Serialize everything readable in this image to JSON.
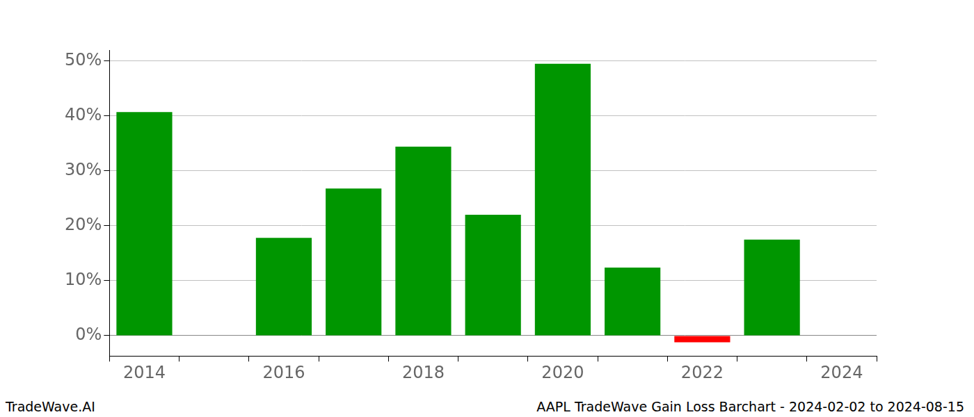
{
  "chart_data": {
    "type": "bar",
    "title": "AAPL TradeWave Gain Loss Barchart - 2024-02-02 to 2024-08-15",
    "annotations": [
      "TradeWave.AI"
    ],
    "categories": [
      "2014",
      null,
      "2016",
      null,
      "2018",
      null,
      "2020",
      null,
      "2022",
      null,
      "2024"
    ],
    "values": [
      40.7,
      null,
      17.8,
      26.8,
      34.4,
      22.0,
      49.5,
      12.4,
      -1.2,
      17.5,
      null
    ],
    "colors": [
      "#009600",
      null,
      "#009600",
      "#009600",
      "#009600",
      "#009600",
      "#009600",
      "#009600",
      "#ff0000",
      "#009600",
      null
    ],
    "ylim": [
      -3.7,
      52
    ],
    "yticks": [
      {
        "value": 0,
        "label": "0%"
      },
      {
        "value": 10,
        "label": "10%"
      },
      {
        "value": 20,
        "label": "20%"
      },
      {
        "value": 30,
        "label": "30%"
      },
      {
        "value": 40,
        "label": "40%"
      },
      {
        "value": 50,
        "label": "50%"
      }
    ],
    "grid": true
  }
}
